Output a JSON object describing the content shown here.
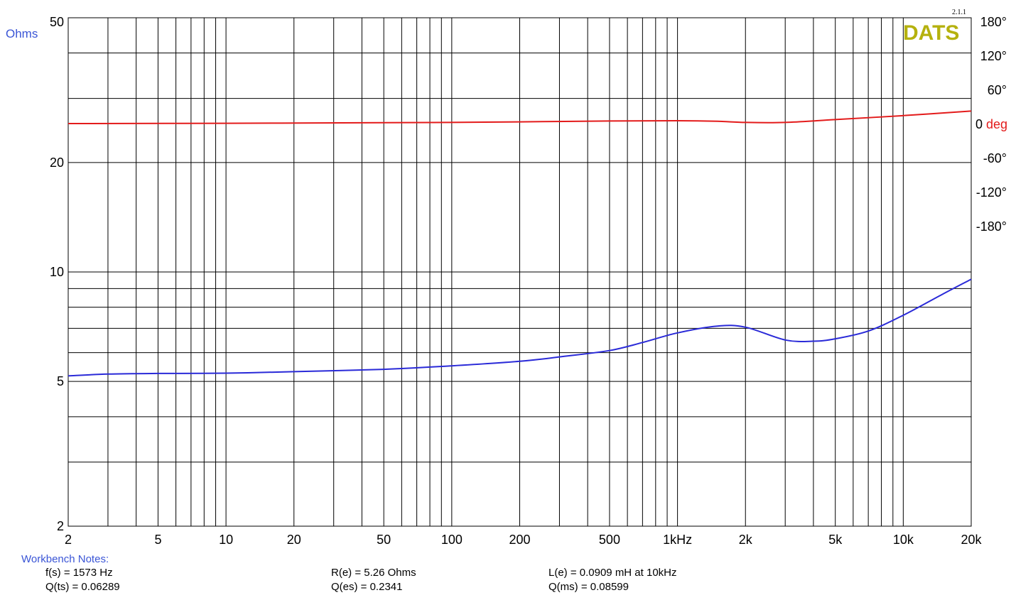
{
  "chart_data": {
    "type": "line",
    "xscale": "log",
    "xlim": [
      2,
      20000
    ],
    "x_ticks": [
      {
        "v": 2,
        "label": "2"
      },
      {
        "v": 5,
        "label": "5"
      },
      {
        "v": 10,
        "label": "10"
      },
      {
        "v": 20,
        "label": "20"
      },
      {
        "v": 50,
        "label": "50"
      },
      {
        "v": 100,
        "label": "100"
      },
      {
        "v": 200,
        "label": "200"
      },
      {
        "v": 500,
        "label": "500"
      },
      {
        "v": 1000,
        "label": "1kHz"
      },
      {
        "v": 2000,
        "label": "2k"
      },
      {
        "v": 5000,
        "label": "5k"
      },
      {
        "v": 10000,
        "label": "10k"
      },
      {
        "v": 20000,
        "label": "20k"
      }
    ],
    "y_left": {
      "label": "Ohms",
      "scale": "log",
      "lim": [
        2,
        50
      ],
      "ticks": [
        {
          "v": 2,
          "label": "2"
        },
        {
          "v": 5,
          "label": "5"
        },
        {
          "v": 10,
          "label": "10"
        },
        {
          "v": 20,
          "label": "20"
        },
        {
          "v": 50,
          "label": "50"
        }
      ]
    },
    "y_right": {
      "label": "deg",
      "lim": [
        -180,
        180
      ],
      "ticks": [
        {
          "v": 180,
          "label": "180°"
        },
        {
          "v": 120,
          "label": "120°"
        },
        {
          "v": 60,
          "label": "60°"
        },
        {
          "v": 0,
          "label": "0"
        },
        {
          "v": -60,
          "label": "-60°"
        },
        {
          "v": -120,
          "label": "-120°"
        },
        {
          "v": -180,
          "label": "-180°"
        }
      ]
    },
    "series": [
      {
        "axis": "left",
        "color": "#2a2ad8",
        "points": [
          [
            2,
            5.18
          ],
          [
            3,
            5.24
          ],
          [
            5,
            5.26
          ],
          [
            10,
            5.27
          ],
          [
            20,
            5.32
          ],
          [
            50,
            5.4
          ],
          [
            100,
            5.52
          ],
          [
            200,
            5.68
          ],
          [
            300,
            5.84
          ],
          [
            500,
            6.08
          ],
          [
            700,
            6.4
          ],
          [
            1000,
            6.8
          ],
          [
            1500,
            7.1
          ],
          [
            2000,
            7.05
          ],
          [
            3000,
            6.5
          ],
          [
            4000,
            6.45
          ],
          [
            5000,
            6.55
          ],
          [
            7000,
            6.88
          ],
          [
            10000,
            7.6
          ],
          [
            15000,
            8.7
          ],
          [
            20000,
            9.55
          ]
        ]
      },
      {
        "axis": "right",
        "color": "#e31b1b",
        "points": [
          [
            2,
            0
          ],
          [
            10,
            0.5
          ],
          [
            50,
            1.5
          ],
          [
            100,
            2
          ],
          [
            200,
            3
          ],
          [
            500,
            4.5
          ],
          [
            1000,
            5
          ],
          [
            1500,
            4
          ],
          [
            2000,
            2
          ],
          [
            3000,
            2
          ],
          [
            5000,
            7
          ],
          [
            10000,
            14
          ],
          [
            20000,
            22
          ]
        ]
      }
    ],
    "brand": "DATS",
    "version": "2.1.1",
    "colors": {
      "left_axis_label": "#3a55d6",
      "right_axis_label": "#e31b1b",
      "brand": "#b5b10e",
      "grid": "#000000"
    }
  },
  "notes": {
    "title": "Workbench Notes:",
    "fs": "f(s) = 1573 Hz",
    "qts": "Q(ts) = 0.06289",
    "re": "R(e) = 5.26 Ohms",
    "qes": "Q(es) = 0.2341",
    "le": "L(e) = 0.0909 mH at 10kHz",
    "qms": "Q(ms) = 0.08599"
  }
}
